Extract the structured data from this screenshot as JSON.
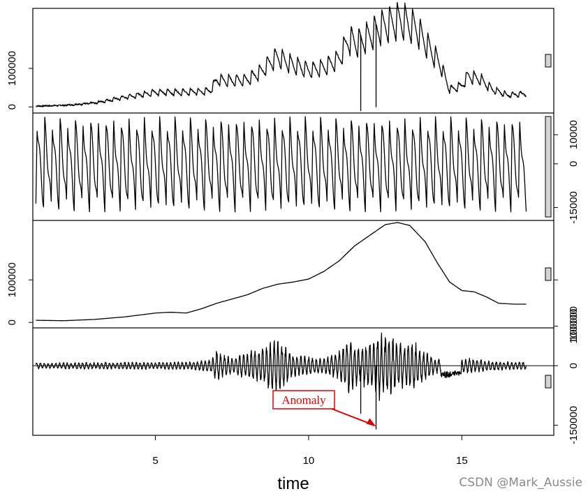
{
  "chart_data": {
    "type": "line",
    "layout": "stacked-panels",
    "xlabel": "time",
    "xlim": [
      1,
      18
    ],
    "x_ticks": [
      "5",
      "10",
      "15"
    ],
    "x_tick_values": [
      5,
      10,
      15
    ],
    "panels": [
      {
        "name": "",
        "left_ticks": [
          "0",
          "100000"
        ],
        "left_tick_values": [
          0,
          100000
        ],
        "right_ticks": [],
        "right_tick_values": [],
        "ylim": [
          -5000,
          245000
        ],
        "scale_bar": "short",
        "series": [
          {
            "name": "",
            "anchors": [
              [
                1.1,
                2000
              ],
              [
                2,
                4000
              ],
              [
                3,
                10000
              ],
              [
                4,
                25000
              ],
              [
                5,
                38000
              ],
              [
                6,
                38000
              ],
              [
                6.8,
                42000
              ],
              [
                7,
                70000
              ],
              [
                7.5,
                68000
              ],
              [
                8,
                70000
              ],
              [
                8.5,
                95000
              ],
              [
                8.8,
                120000
              ],
              [
                9,
                130000
              ],
              [
                9.3,
                115000
              ],
              [
                10,
                95000
              ],
              [
                10.5,
                102000
              ],
              [
                11,
                125000
              ],
              [
                11.3,
                175000
              ],
              [
                11.6,
                165000
              ],
              [
                12,
                185000
              ],
              [
                12.3,
                205000
              ],
              [
                13,
                225000
              ],
              [
                13.5,
                205000
              ],
              [
                14,
                145000
              ],
              [
                14.3,
                110000
              ],
              [
                14.6,
                45000
              ],
              [
                15,
                55000
              ],
              [
                15.2,
                80000
              ],
              [
                15.6,
                72000
              ],
              [
                16,
                45000
              ],
              [
                16.5,
                30000
              ],
              [
                17.1,
                35000
              ]
            ],
            "seasonal_amplitude_ratio": 0.45,
            "seasonal_period": 0.25,
            "spikes": [
              [
                11.7,
                -10000
              ],
              [
                12.2,
                0
              ]
            ]
          }
        ]
      },
      {
        "name": "",
        "left_ticks": [],
        "left_tick_values": [],
        "right_ticks": [
          "-15000",
          "0",
          "10000"
        ],
        "right_tick_values": [
          -15000,
          0,
          10000
        ],
        "ylim": [
          -18000,
          16000
        ],
        "scale_bar": "tall",
        "series": [
          {
            "name": "",
            "pattern": "seasonal",
            "amplitude": 14000,
            "period": 0.25
          }
        ]
      },
      {
        "name": "",
        "left_ticks": [
          "0",
          "100000"
        ],
        "left_tick_values": [
          0,
          100000
        ],
        "right_ticks": [
          "100000"
        ],
        "right_tick_values": [
          100000
        ],
        "ylim": [
          -3000,
          230000
        ],
        "scale_bar": "short",
        "series": [
          {
            "name": "",
            "points": [
              [
                1.1,
                5000
              ],
              [
                2,
                4000
              ],
              [
                3,
                7000
              ],
              [
                4,
                13000
              ],
              [
                5,
                22000
              ],
              [
                5.5,
                24000
              ],
              [
                6,
                22000
              ],
              [
                6.5,
                32000
              ],
              [
                7,
                45000
              ],
              [
                7.5,
                55000
              ],
              [
                8,
                65000
              ],
              [
                8.5,
                80000
              ],
              [
                9,
                90000
              ],
              [
                9.5,
                95000
              ],
              [
                10,
                102000
              ],
              [
                10.5,
                120000
              ],
              [
                11,
                145000
              ],
              [
                11.5,
                180000
              ],
              [
                12,
                205000
              ],
              [
                12.5,
                230000
              ],
              [
                12.9,
                235000
              ],
              [
                13.3,
                228000
              ],
              [
                13.8,
                190000
              ],
              [
                14.2,
                140000
              ],
              [
                14.6,
                95000
              ],
              [
                15,
                75000
              ],
              [
                15.4,
                72000
              ],
              [
                15.8,
                60000
              ],
              [
                16.2,
                45000
              ],
              [
                16.7,
                43000
              ],
              [
                17.1,
                43000
              ]
            ]
          }
        ]
      },
      {
        "name": "",
        "left_ticks": [],
        "left_tick_values": [],
        "right_ticks": [
          "-150000",
          "0",
          "100000"
        ],
        "right_tick_values": [
          -150000,
          0,
          100000
        ],
        "ylim": [
          -165000,
          85000
        ],
        "scale_bar": "short",
        "zero_line": true,
        "series": [
          {
            "name": "",
            "envelope": [
              [
                1.1,
                8000
              ],
              [
                6,
                10000
              ],
              [
                6.8,
                15000
              ],
              [
                7,
                40000
              ],
              [
                7.5,
                20000
              ],
              [
                8.5,
                50000
              ],
              [
                9,
                70000
              ],
              [
                9.5,
                30000
              ],
              [
                10.5,
                20000
              ],
              [
                11,
                40000
              ],
              [
                11.3,
                75000
              ],
              [
                11.6,
                50000
              ],
              [
                12,
                60000
              ],
              [
                12.3,
                90000
              ],
              [
                13,
                60000
              ],
              [
                13.5,
                60000
              ],
              [
                14,
                25000
              ],
              [
                14.6,
                10000
              ],
              [
                15.2,
                20000
              ],
              [
                16,
                12000
              ],
              [
                17.1,
                10000
              ]
            ],
            "dips": [
              [
                14.5,
                -30000
              ],
              [
                14.8,
                -25000
              ]
            ],
            "spikes": [
              [
                11.7,
                -120000
              ],
              [
                12.2,
                -160000
              ]
            ]
          }
        ]
      }
    ],
    "annotations": [
      {
        "text": "Anomaly",
        "target_x": 12.2,
        "panel_index": 3,
        "target_value": -150000
      }
    ]
  },
  "watermark": "CSDN @Mark_Aussie"
}
